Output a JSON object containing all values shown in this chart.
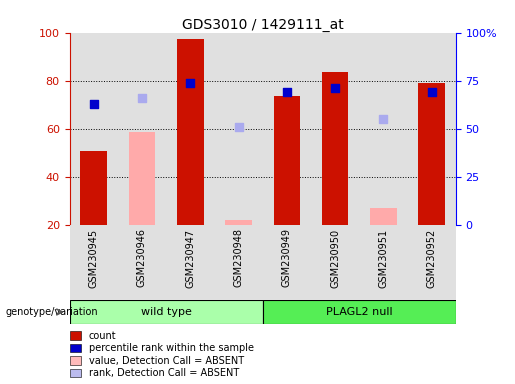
{
  "title": "GDS3010 / 1429111_at",
  "samples": [
    "GSM230945",
    "GSM230946",
    "GSM230947",
    "GSM230948",
    "GSM230949",
    "GSM230950",
    "GSM230951",
    "GSM230952"
  ],
  "count_values": [
    50.5,
    null,
    97.5,
    null,
    73.5,
    83.5,
    null,
    79.0
  ],
  "count_absent": [
    null,
    58.5,
    null,
    22.0,
    null,
    null,
    27.0,
    null
  ],
  "rank_values": [
    63.0,
    null,
    74.0,
    null,
    69.0,
    71.0,
    null,
    69.0
  ],
  "rank_absent": [
    null,
    66.0,
    null,
    51.0,
    null,
    null,
    55.0,
    null
  ],
  "ylim_left": [
    20,
    100
  ],
  "ylim_right": [
    0,
    100
  ],
  "yticks_left": [
    20,
    40,
    60,
    80,
    100
  ],
  "yticks_right": [
    0,
    25,
    50,
    75,
    100
  ],
  "ytick_labels_right": [
    "0",
    "25",
    "50",
    "75",
    "100%"
  ],
  "bar_color_red": "#cc1100",
  "bar_color_pink": "#ffaaaa",
  "dot_color_blue": "#0000cc",
  "dot_color_lightblue": "#aaaaee",
  "wild_type_color": "#aaffaa",
  "plagl2_color": "#55ee55",
  "bar_width": 0.55,
  "dot_size": 40,
  "legend_items": [
    {
      "label": "count",
      "color": "#cc1100"
    },
    {
      "label": "percentile rank within the sample",
      "color": "#0000cc"
    },
    {
      "label": "value, Detection Call = ABSENT",
      "color": "#ffbbbb"
    },
    {
      "label": "rank, Detection Call = ABSENT",
      "color": "#bbbbee"
    }
  ]
}
